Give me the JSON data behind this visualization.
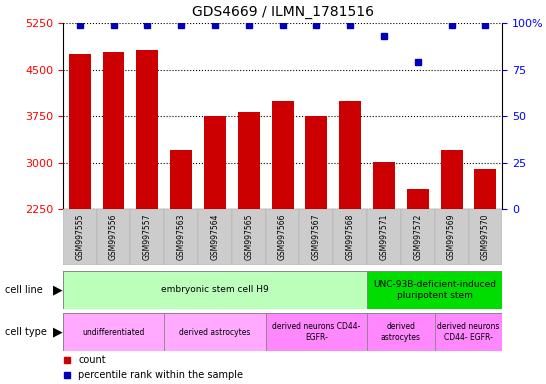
{
  "title": "GDS4669 / ILMN_1781516",
  "samples": [
    "GSM997555",
    "GSM997556",
    "GSM997557",
    "GSM997563",
    "GSM997564",
    "GSM997565",
    "GSM997566",
    "GSM997567",
    "GSM997568",
    "GSM997571",
    "GSM997572",
    "GSM997569",
    "GSM997570"
  ],
  "counts": [
    4750,
    4780,
    4820,
    3200,
    3760,
    3820,
    4000,
    3760,
    4000,
    3010,
    2580,
    3200,
    2900
  ],
  "percentile_ranks": [
    99,
    99,
    99,
    99,
    99,
    99,
    99,
    99,
    99,
    93,
    79,
    99,
    99
  ],
  "ylim_left": [
    2250,
    5250
  ],
  "ylim_right": [
    0,
    100
  ],
  "yticks_left": [
    2250,
    3000,
    3750,
    4500,
    5250
  ],
  "yticks_right": [
    0,
    25,
    50,
    75,
    100
  ],
  "bar_color": "#cc0000",
  "dot_color": "#0000bb",
  "cell_line_groups": [
    {
      "label": "embryonic stem cell H9",
      "start": 0,
      "end": 9,
      "color": "#bbffbb"
    },
    {
      "label": "UNC-93B-deficient-induced\npluripotent stem",
      "start": 9,
      "end": 13,
      "color": "#00dd00"
    }
  ],
  "cell_type_groups": [
    {
      "label": "undifferentiated",
      "start": 0,
      "end": 3,
      "color": "#ffaaff"
    },
    {
      "label": "derived astrocytes",
      "start": 3,
      "end": 6,
      "color": "#ffaaff"
    },
    {
      "label": "derived neurons CD44-\nEGFR-",
      "start": 6,
      "end": 9,
      "color": "#ff88ff"
    },
    {
      "label": "derived\nastrocytes",
      "start": 9,
      "end": 11,
      "color": "#ff88ff"
    },
    {
      "label": "derived neurons\nCD44- EGFR-",
      "start": 11,
      "end": 13,
      "color": "#ff88ff"
    }
  ],
  "legend_count_color": "#cc0000",
  "legend_percentile_color": "#0000bb"
}
